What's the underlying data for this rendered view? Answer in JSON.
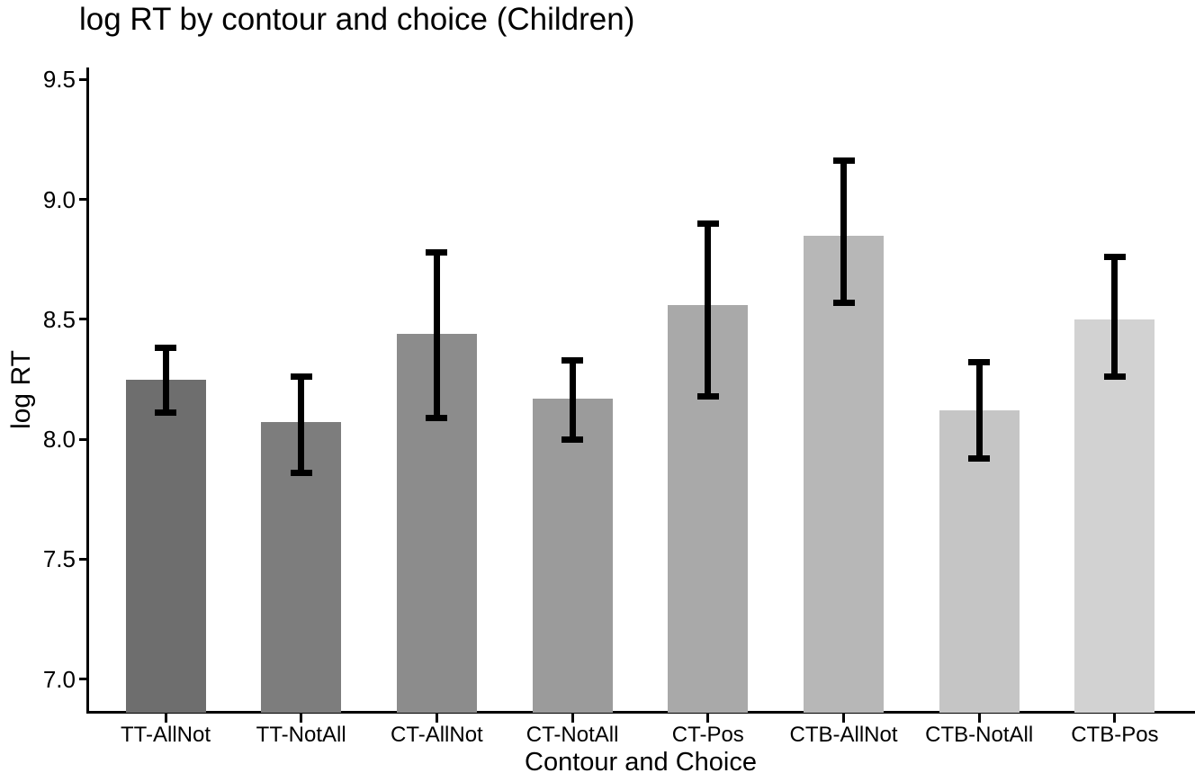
{
  "chart_data": {
    "type": "bar",
    "title": "log RT by contour and choice (Children)",
    "xlabel": "Contour and Choice",
    "ylabel": "log RT",
    "categories": [
      "TT-AllNot",
      "TT-NotAll",
      "CT-AllNot",
      "CT-NotAll",
      "CT-Pos",
      "CTB-AllNot",
      "CTB-NotAll",
      "CTB-Pos"
    ],
    "values": [
      8.25,
      8.07,
      8.44,
      8.17,
      8.56,
      8.85,
      8.12,
      8.5
    ],
    "error_low": [
      8.11,
      7.86,
      8.09,
      8.0,
      8.18,
      8.57,
      7.92,
      8.26
    ],
    "error_high": [
      8.38,
      8.26,
      8.78,
      8.33,
      8.9,
      9.16,
      8.32,
      8.76
    ],
    "bar_colors": [
      "#6e6e6e",
      "#7d7d7d",
      "#8c8c8c",
      "#9b9b9b",
      "#a9a9a9",
      "#b7b7b7",
      "#c5c5c5",
      "#d2d2d2"
    ],
    "y_tick_labels": [
      "9.5",
      "9.0",
      "8.5",
      "8.0",
      "7.5",
      "7.0"
    ],
    "y_tick_values": [
      9.5,
      9.0,
      8.5,
      8.0,
      7.5,
      7.0
    ],
    "ylim": [
      6.86,
      9.55
    ],
    "grid": false,
    "legend": false,
    "axis_color": "#000000",
    "error_color": "#000000",
    "text_color": "#000000",
    "background_color": "#ffffff"
  }
}
